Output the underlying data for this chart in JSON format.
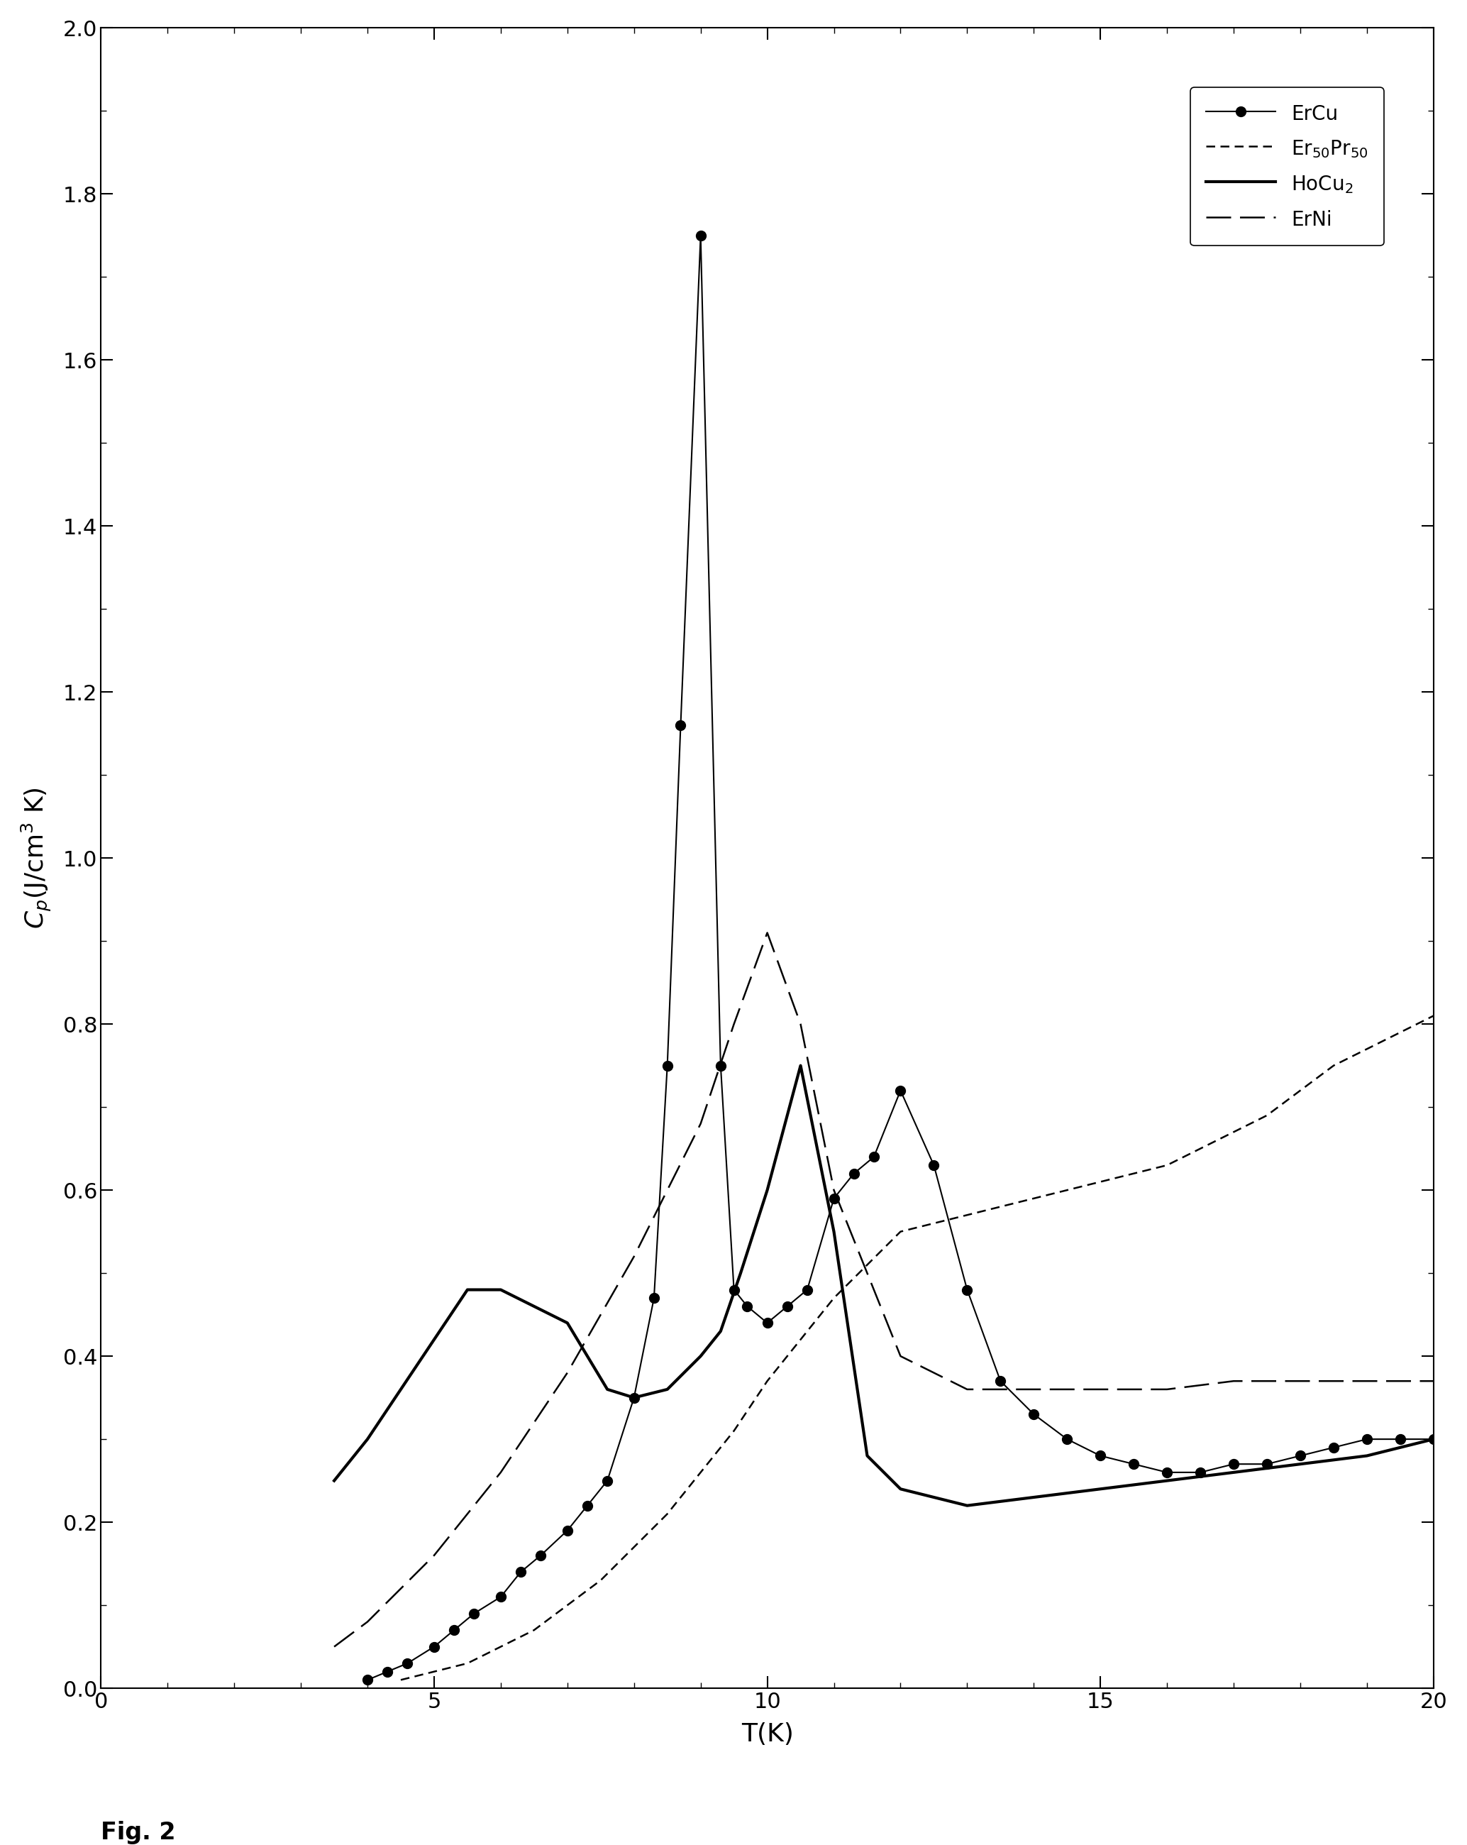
{
  "title": "",
  "xlabel": "T(K)",
  "ylabel": "C_p(J/cm^3 K)",
  "xlim": [
    0,
    20
  ],
  "ylim": [
    0,
    2.0
  ],
  "xticks": [
    0,
    5,
    10,
    15,
    20
  ],
  "yticks": [
    0.0,
    0.2,
    0.4,
    0.6,
    0.8,
    1.0,
    1.2,
    1.4,
    1.6,
    1.8,
    2.0
  ],
  "fig_label": "Fig. 2",
  "ErCu_x": [
    4.0,
    4.3,
    4.6,
    5.0,
    5.3,
    5.6,
    6.0,
    6.3,
    6.6,
    7.0,
    7.3,
    7.6,
    8.0,
    8.3,
    8.5,
    8.7,
    9.0,
    9.3,
    9.5,
    9.7,
    10.0,
    10.3,
    10.6,
    11.0,
    11.3,
    11.6,
    12.0,
    12.5,
    13.0,
    13.5,
    14.0,
    14.5,
    15.0,
    15.5,
    16.0,
    16.5,
    17.0,
    17.5,
    18.0,
    18.5,
    19.0,
    19.5,
    20.0
  ],
  "ErCu_y": [
    0.01,
    0.02,
    0.03,
    0.05,
    0.07,
    0.09,
    0.11,
    0.14,
    0.16,
    0.19,
    0.22,
    0.25,
    0.35,
    0.47,
    0.75,
    1.16,
    1.75,
    0.75,
    0.48,
    0.46,
    0.44,
    0.46,
    0.48,
    0.59,
    0.62,
    0.64,
    0.72,
    0.63,
    0.48,
    0.37,
    0.33,
    0.3,
    0.28,
    0.27,
    0.26,
    0.26,
    0.27,
    0.27,
    0.28,
    0.29,
    0.3,
    0.3,
    0.3
  ],
  "Er50Pr50_x": [
    4.5,
    5.0,
    5.5,
    6.0,
    6.5,
    7.0,
    7.5,
    8.0,
    8.5,
    9.0,
    9.5,
    10.0,
    10.5,
    11.0,
    11.5,
    12.0,
    12.5,
    13.0,
    13.5,
    14.0,
    14.5,
    15.0,
    15.5,
    16.0,
    16.5,
    17.0,
    17.5,
    18.0,
    18.5,
    19.0,
    19.5,
    20.0
  ],
  "Er50Pr50_y": [
    0.01,
    0.02,
    0.03,
    0.05,
    0.07,
    0.1,
    0.13,
    0.17,
    0.21,
    0.26,
    0.31,
    0.37,
    0.42,
    0.47,
    0.51,
    0.55,
    0.56,
    0.57,
    0.58,
    0.59,
    0.6,
    0.61,
    0.62,
    0.63,
    0.65,
    0.67,
    0.69,
    0.72,
    0.75,
    0.77,
    0.79,
    0.81
  ],
  "HoCu2_x": [
    3.5,
    4.0,
    4.5,
    5.0,
    5.5,
    6.0,
    6.5,
    7.0,
    7.3,
    7.6,
    8.0,
    8.5,
    9.0,
    9.3,
    9.6,
    10.0,
    10.5,
    11.0,
    11.5,
    12.0,
    13.0,
    14.0,
    15.0,
    16.0,
    17.0,
    18.0,
    19.0,
    20.0
  ],
  "HoCu2_y": [
    0.25,
    0.3,
    0.36,
    0.42,
    0.48,
    0.48,
    0.46,
    0.44,
    0.4,
    0.36,
    0.35,
    0.36,
    0.4,
    0.43,
    0.5,
    0.6,
    0.75,
    0.55,
    0.28,
    0.24,
    0.22,
    0.23,
    0.24,
    0.25,
    0.26,
    0.27,
    0.28,
    0.3
  ],
  "ErNi_x": [
    3.5,
    4.0,
    5.0,
    6.0,
    7.0,
    8.0,
    9.0,
    9.5,
    10.0,
    10.5,
    11.0,
    12.0,
    13.0,
    14.0,
    15.0,
    16.0,
    17.0,
    18.0,
    19.0,
    20.0
  ],
  "ErNi_y": [
    0.05,
    0.08,
    0.16,
    0.26,
    0.38,
    0.52,
    0.68,
    0.8,
    0.91,
    0.8,
    0.6,
    0.4,
    0.36,
    0.36,
    0.36,
    0.36,
    0.37,
    0.37,
    0.37,
    0.37
  ],
  "background_color": "#ffffff",
  "line_color": "#000000"
}
